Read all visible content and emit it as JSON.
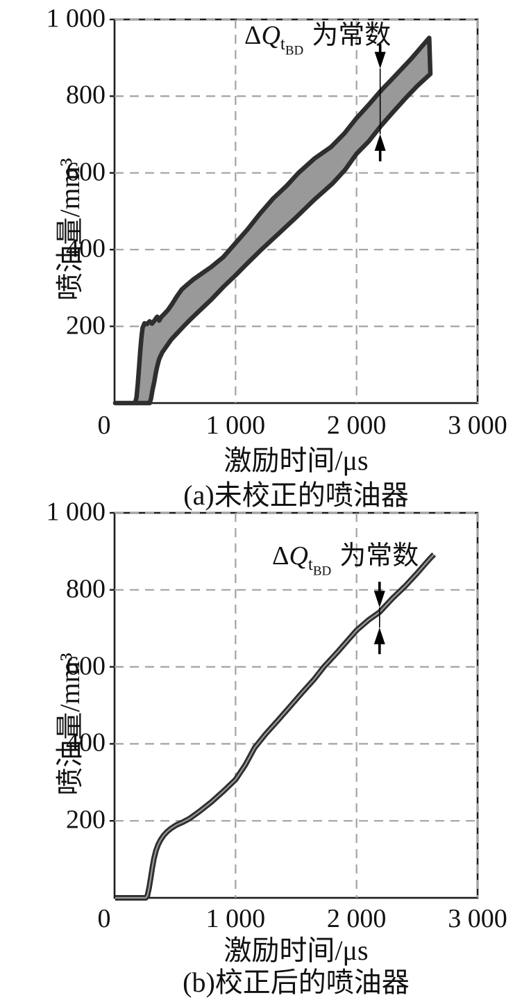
{
  "figure": {
    "background": "#ffffff",
    "text_color": "#111111",
    "border_color": "#1b1b1b",
    "grid_color": "#a2a2a2"
  },
  "chart_data": [
    {
      "id": "a",
      "type": "area",
      "caption": "(a)未校正的喷油器",
      "xlabel": "激励时间/μs",
      "ylabel": "喷油量/mm³",
      "xlim": [
        0,
        3000
      ],
      "ylim": [
        0,
        1000
      ],
      "xticks": [
        {
          "v": 0,
          "label": "0"
        },
        {
          "v": 1000,
          "label": "1 000"
        },
        {
          "v": 2000,
          "label": "2 000"
        },
        {
          "v": 3000,
          "label": "3 000"
        }
      ],
      "yticks": [
        {
          "v": 200,
          "label": "200"
        },
        {
          "v": 400,
          "label": "400"
        },
        {
          "v": 600,
          "label": "600"
        },
        {
          "v": 800,
          "label": "800"
        },
        {
          "v": 1000,
          "label": "1 000"
        }
      ],
      "grid": {
        "dashed": true,
        "horizontal": [
          200,
          400,
          600,
          800,
          1000
        ],
        "vertical": [
          1000,
          2000,
          3000
        ]
      },
      "colors": {
        "outline": "#2e2e2e",
        "fill": "#999999"
      },
      "annotation": {
        "delta": "Δ",
        "symbol": "Q",
        "sub": "t",
        "subsub": "BD",
        "text": "为常数",
        "arrow": {
          "x": 2195,
          "from": 936,
          "down_tip": 872,
          "up_tip": 701,
          "to": 630
        }
      },
      "series": [
        {
          "name": "upper_bound",
          "points": [
            [
              5,
              0
            ],
            [
              170,
              0
            ],
            [
              182,
              15
            ],
            [
              192,
              50
            ],
            [
              202,
              90
            ],
            [
              212,
              135
            ],
            [
              222,
              170
            ],
            [
              232,
              196
            ],
            [
              248,
              208
            ],
            [
              268,
              206
            ],
            [
              290,
              213
            ],
            [
              310,
              207
            ],
            [
              330,
              215
            ],
            [
              352,
              225
            ],
            [
              368,
              215
            ],
            [
              388,
              225
            ],
            [
              410,
              232
            ],
            [
              440,
              242
            ],
            [
              475,
              258
            ],
            [
              515,
              278
            ],
            [
              555,
              296
            ],
            [
              591,
              306
            ],
            [
              650,
              322
            ],
            [
              700,
              333
            ],
            [
              800,
              355
            ],
            [
              900,
              381
            ],
            [
              1000,
              417
            ],
            [
              1100,
              453
            ],
            [
              1200,
              493
            ],
            [
              1310,
              533
            ],
            [
              1424,
              567
            ],
            [
              1520,
              600
            ],
            [
              1650,
              637
            ],
            [
              1790,
              668
            ],
            [
              1900,
              703
            ],
            [
              2000,
              743
            ],
            [
              2110,
              781
            ],
            [
              2200,
              814
            ],
            [
              2300,
              847
            ],
            [
              2450,
              897
            ],
            [
              2600,
              952
            ]
          ]
        },
        {
          "name": "lower_bound",
          "points": [
            [
              5,
              0
            ],
            [
              290,
              0
            ],
            [
              302,
              12
            ],
            [
              314,
              34
            ],
            [
              328,
              55
            ],
            [
              342,
              80
            ],
            [
              354,
              97
            ],
            [
              368,
              114
            ],
            [
              382,
              124
            ],
            [
              396,
              133
            ],
            [
              412,
              140
            ],
            [
              438,
              152
            ],
            [
              470,
              166
            ],
            [
              520,
              183
            ],
            [
              574,
              201
            ],
            [
              620,
              216
            ],
            [
              700,
              240
            ],
            [
              800,
              270
            ],
            [
              900,
              303
            ],
            [
              1000,
              333
            ],
            [
              1100,
              365
            ],
            [
              1213,
              400
            ],
            [
              1350,
              440
            ],
            [
              1500,
              484
            ],
            [
              1650,
              530
            ],
            [
              1800,
              572
            ],
            [
              1905,
              608
            ],
            [
              2000,
              650
            ],
            [
              2100,
              682
            ],
            [
              2200,
              722
            ],
            [
              2300,
              758
            ],
            [
              2400,
              793
            ],
            [
              2500,
              826
            ],
            [
              2610,
              858
            ]
          ]
        }
      ]
    },
    {
      "id": "b",
      "type": "line",
      "caption": "(b)校正后的喷油器",
      "xlabel": "激励时间/μs",
      "ylabel": "喷油量/mm³",
      "xlim": [
        0,
        3000
      ],
      "ylim": [
        0,
        1000
      ],
      "xticks": [
        {
          "v": 0,
          "label": "0"
        },
        {
          "v": 1000,
          "label": "1 000"
        },
        {
          "v": 2000,
          "label": "2 000"
        },
        {
          "v": 3000,
          "label": "3 000"
        }
      ],
      "yticks": [
        {
          "v": 200,
          "label": "200"
        },
        {
          "v": 400,
          "label": "400"
        },
        {
          "v": 600,
          "label": "600"
        },
        {
          "v": 800,
          "label": "800"
        },
        {
          "v": 1000,
          "label": "1 000"
        }
      ],
      "grid": {
        "dashed": true,
        "horizontal": [
          200,
          400,
          600,
          800,
          1000
        ],
        "vertical": [
          1000,
          2000,
          3000
        ]
      },
      "colors": {
        "outline": "#2e2e2e",
        "core": "#9a9a9a"
      },
      "annotation": {
        "delta": "Δ",
        "symbol": "Q",
        "sub": "t",
        "subsub": "BD",
        "text": "为常数",
        "arrow": {
          "x": 2190,
          "from": 821,
          "down_tip": 754,
          "up_tip": 702,
          "to": 633
        }
      },
      "series": [
        {
          "name": "corrected_flow",
          "points": [
            [
              5,
              0
            ],
            [
              258,
              0
            ],
            [
              272,
              6
            ],
            [
              285,
              25
            ],
            [
              298,
              50
            ],
            [
              312,
              78
            ],
            [
              326,
              102
            ],
            [
              342,
              122
            ],
            [
              360,
              138
            ],
            [
              380,
              150
            ],
            [
              405,
              162
            ],
            [
              435,
              172
            ],
            [
              470,
              181
            ],
            [
              510,
              189
            ],
            [
              560,
              196
            ],
            [
              620,
              206
            ],
            [
              700,
              224
            ],
            [
              800,
              249
            ],
            [
              900,
              277
            ],
            [
              1000,
              307
            ],
            [
              1080,
              345
            ],
            [
              1158,
              390
            ],
            [
              1250,
              426
            ],
            [
              1350,
              461
            ],
            [
              1450,
              497
            ],
            [
              1550,
              533
            ],
            [
              1650,
              568
            ],
            [
              1730,
              600
            ],
            [
              1850,
              641
            ],
            [
              2000,
              695
            ],
            [
              2100,
              722
            ],
            [
              2190,
              742
            ],
            [
              2300,
              779
            ],
            [
              2400,
              809
            ],
            [
              2500,
              843
            ],
            [
              2600,
              879
            ],
            [
              2640,
              892
            ]
          ]
        }
      ]
    }
  ]
}
